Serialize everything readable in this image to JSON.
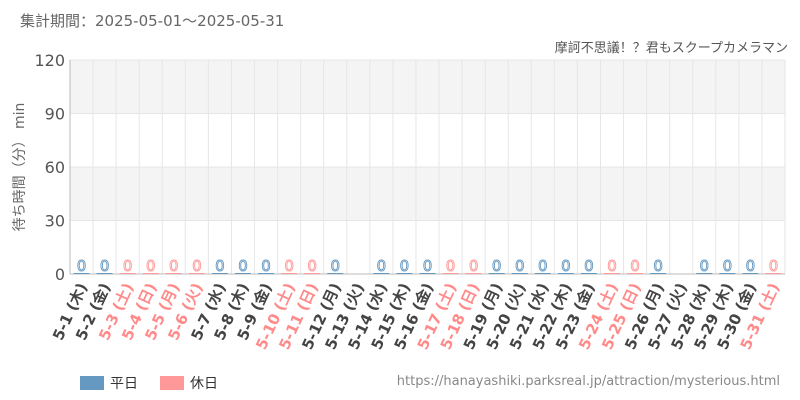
{
  "header": {
    "period": "集計期間：2025-05-01～2025-05-31",
    "attraction": "摩訶不思議！？君もスクープカメラマン"
  },
  "footer": {
    "url": "https://hanayashiki.parksreal.jp/attraction/mysterious.html"
  },
  "colors": {
    "weekday": "#6699c2",
    "holiday": "#ff9999",
    "weekday_label": "#444444",
    "holiday_label": "#ff8a8a",
    "band": "#f4f4f4",
    "grid": "#e6e6e6"
  },
  "chart_data": {
    "type": "bar",
    "ylabel": "待ち時間（分） min",
    "ylim": [
      0,
      120
    ],
    "yticks": [
      0,
      30,
      60,
      90,
      120
    ],
    "grid": true,
    "legend_position": "bottom-left",
    "legend": [
      {
        "name": "平日",
        "color": "#6699c2"
      },
      {
        "name": "休日",
        "color": "#ff9999"
      }
    ],
    "categories": [
      "5-1 (木)",
      "5-2 (金)",
      "5-3 (土)",
      "5-4 (日)",
      "5-5 (月)",
      "5-6 (火)",
      "5-7 (水)",
      "5-8 (木)",
      "5-9 (金)",
      "5-10 (土)",
      "5-11 (日)",
      "5-12 (月)",
      "5-13 (火)",
      "5-14 (水)",
      "5-15 (木)",
      "5-16 (金)",
      "5-17 (土)",
      "5-18 (日)",
      "5-19 (月)",
      "5-20 (火)",
      "5-21 (水)",
      "5-22 (木)",
      "5-23 (金)",
      "5-24 (土)",
      "5-25 (日)",
      "5-26 (月)",
      "5-27 (火)",
      "5-28 (水)",
      "5-29 (木)",
      "5-30 (金)",
      "5-31 (土)"
    ],
    "day_type": [
      "weekday",
      "weekday",
      "holiday",
      "holiday",
      "holiday",
      "holiday",
      "weekday",
      "weekday",
      "weekday",
      "holiday",
      "holiday",
      "weekday",
      "weekday",
      "weekday",
      "weekday",
      "weekday",
      "holiday",
      "holiday",
      "weekday",
      "weekday",
      "weekday",
      "weekday",
      "weekday",
      "holiday",
      "holiday",
      "weekday",
      "weekday",
      "weekday",
      "weekday",
      "weekday",
      "holiday"
    ],
    "values": [
      0,
      0,
      0,
      0,
      0,
      0,
      0,
      0,
      0,
      0,
      0,
      0,
      null,
      0,
      0,
      0,
      0,
      0,
      0,
      0,
      0,
      0,
      0,
      0,
      0,
      0,
      null,
      0,
      0,
      0,
      0
    ]
  }
}
